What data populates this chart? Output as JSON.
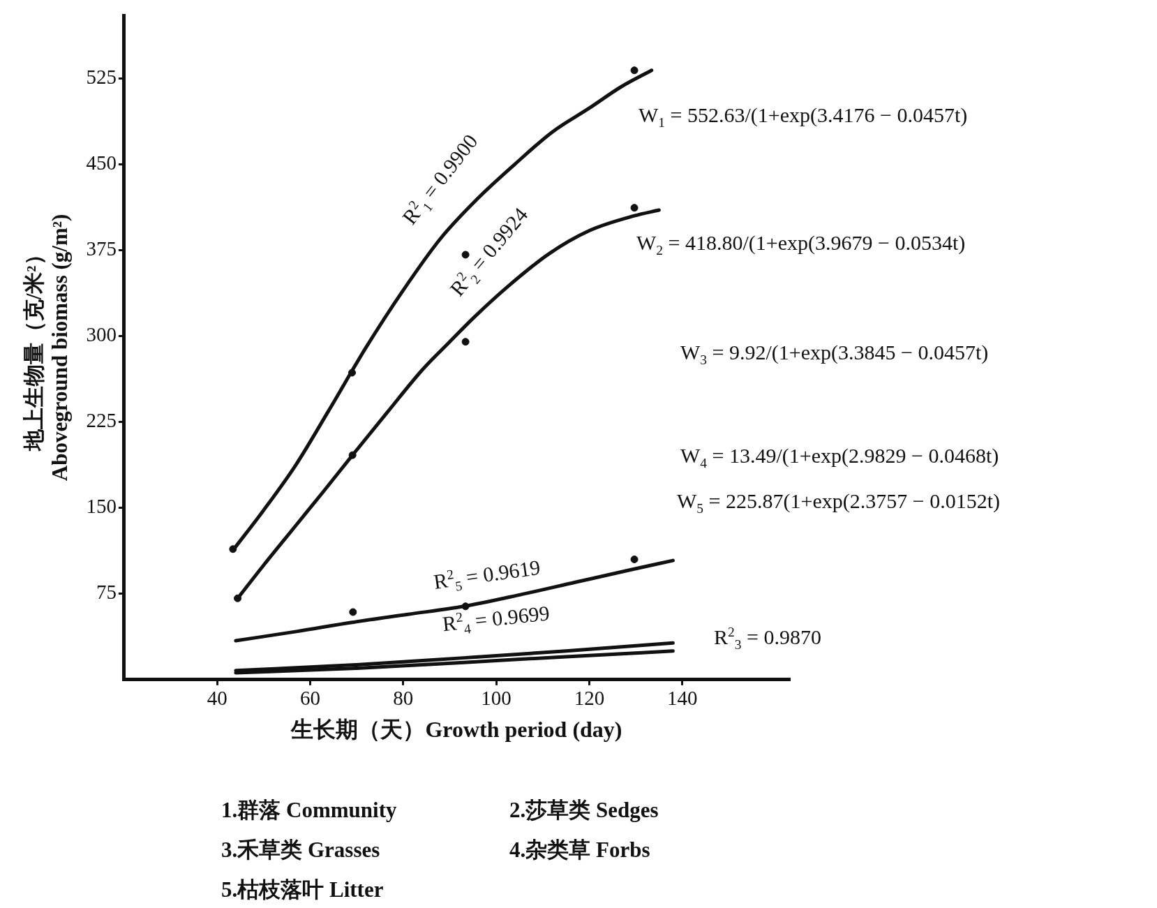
{
  "chart_data": {
    "type": "line",
    "xlabel": "生长期（天）Growth period (day)",
    "ylabel": "地上生物量（克/米²）\nAboveground biomass (g/m²)",
    "xlim": [
      20,
      163
    ],
    "xticks": [
      40,
      60,
      80,
      100,
      120,
      140
    ],
    "ylim": [
      0,
      580
    ],
    "yticks": [
      75,
      150,
      225,
      300,
      375,
      450,
      525
    ],
    "grid": false,
    "legend": false,
    "marker": "circle",
    "series": [
      {
        "marker": "none",
        "color": "#111111",
        "x": [
          43.4,
          50,
          57,
          64,
          72,
          80,
          88,
          96,
          104,
          112,
          120,
          127,
          133.4
        ],
        "values": [
          113,
          148,
          188,
          235,
          290,
          340,
          385,
          420,
          450,
          478,
          499,
          518,
          532
        ]
      },
      {
        "marker": "none",
        "color": "#111111",
        "x": [
          44.4,
          50,
          57,
          63,
          69.1,
          76.5,
          84,
          90,
          95.4,
          103,
          111.4,
          120,
          129.7,
          135
        ],
        "values": [
          71,
          100,
          135,
          165,
          196,
          233,
          270,
          295,
          317,
          345,
          372,
          392,
          405,
          410
        ]
      },
      {
        "marker": "none",
        "color": "#111111",
        "x": [
          44,
          70,
          93,
          115,
          138
        ],
        "values": [
          6,
          10,
          15,
          20,
          25
        ]
      },
      {
        "marker": "none",
        "color": "#111111",
        "x": [
          44,
          70,
          93,
          115,
          138
        ],
        "values": [
          8,
          13,
          19,
          25,
          32
        ]
      },
      {
        "marker": "none",
        "color": "#111111",
        "x": [
          44,
          57,
          69,
          81,
          93,
          105,
          117,
          129,
          138
        ],
        "values": [
          34,
          42,
          50,
          57,
          64,
          74,
          85,
          96,
          104
        ]
      },
      {
        "type": "scatter",
        "color": "#111111",
        "x": [
          43.4,
          69,
          93.4,
          129.7
        ],
        "values": [
          114,
          268,
          371,
          532
        ]
      },
      {
        "type": "scatter",
        "color": "#111111",
        "x": [
          44.4,
          69.1,
          93.4,
          129.7
        ],
        "values": [
          71,
          196,
          295,
          412
        ]
      },
      {
        "type": "scatter",
        "color": "#111111",
        "x": [
          69.2,
          93.4,
          129.7
        ],
        "values": [
          59,
          64,
          105
        ]
      }
    ],
    "annotations": [
      "R$^{2}$$_{1}$ = 0.9900",
      "R$^{2}$$_{2}$ = 0.9924",
      "R$^{2}$$_{5}$ = 0.9619",
      "R$^{2}$$_{4}$ = 0.9699",
      "R$^{2}$$_{3}$ = 0.9870",
      "W$_{1}$ = 552.63/(1+exp(3.4176 − 0.0457t)",
      "W$_{2}$ = 418.80/(1+exp(3.9679 − 0.0534t)",
      "W$_{3}$ = 9.92/(1+exp(3.3845 − 0.0457t)",
      "W$_{4}$ = 13.49/(1+exp(2.9829 − 0.0468t)",
      "W$_{5}$ = 225.87(1+exp(2.3757 − 0.0152t)",
      "1.群落 Community",
      "2.莎草类 Sedges",
      "3.禾草类 Grasses",
      "4.杂类草 Forbs",
      "5.枯枝落叶 Litter"
    ]
  }
}
